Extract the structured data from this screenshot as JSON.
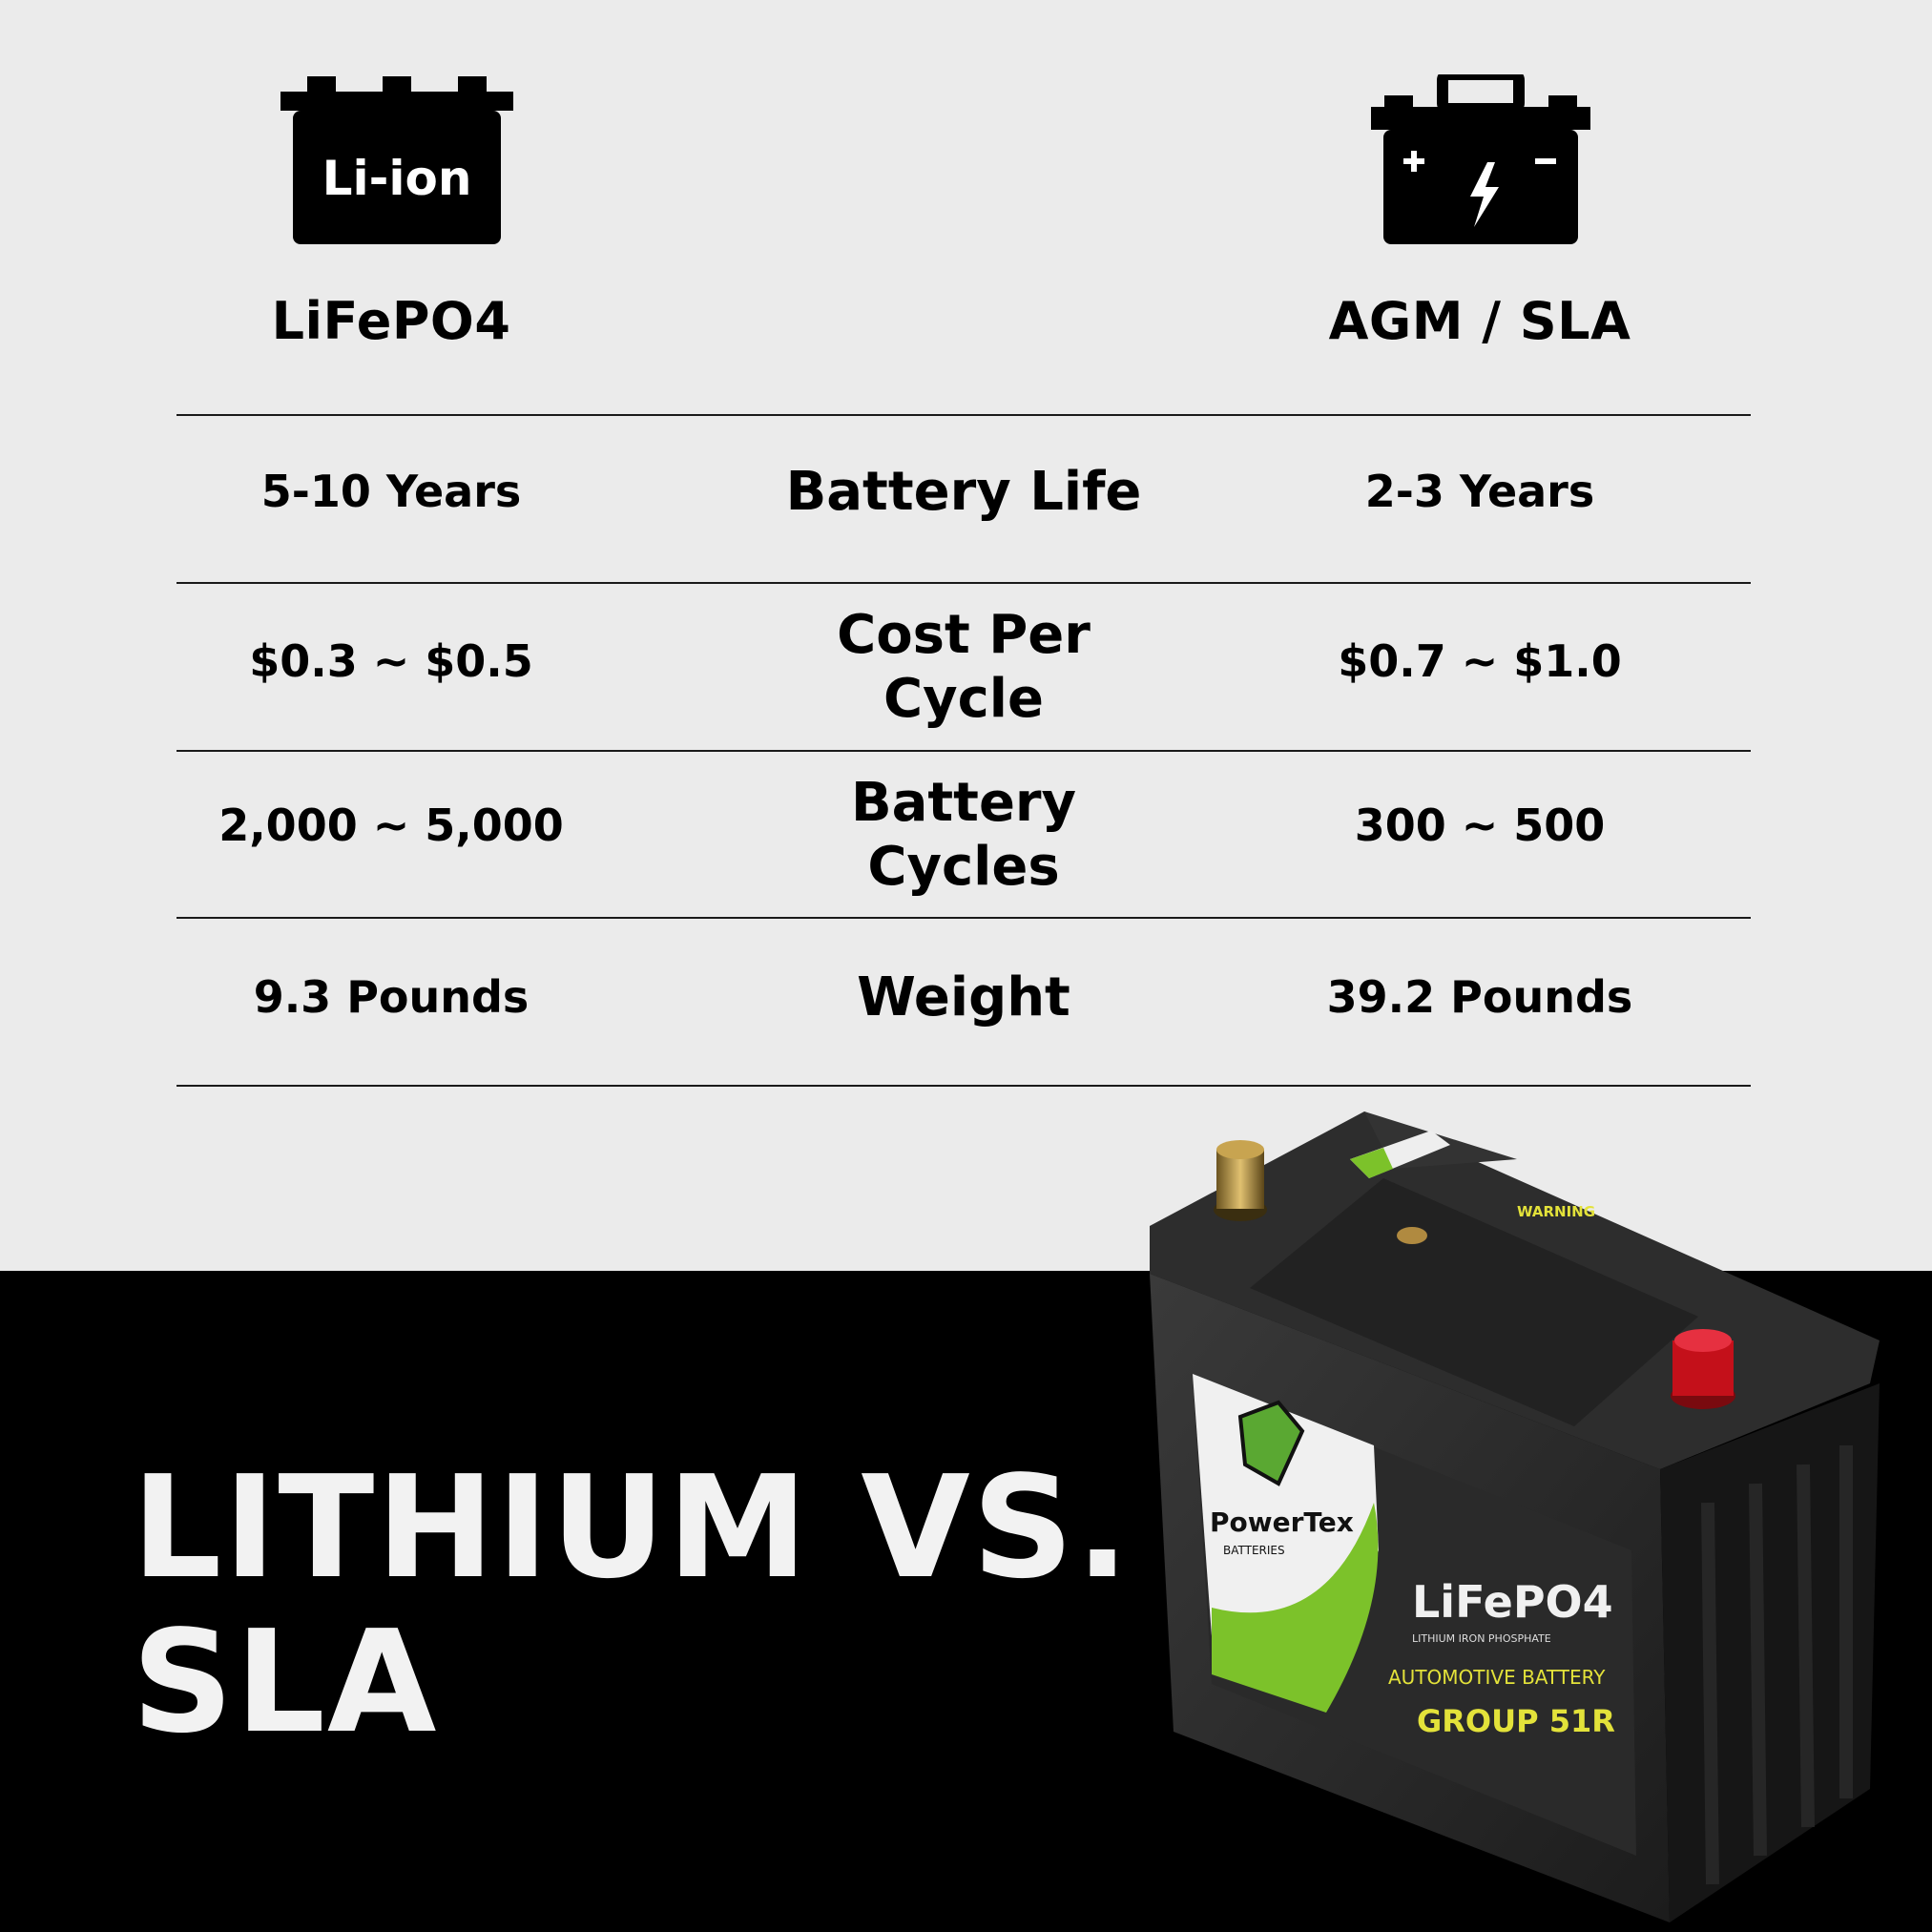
{
  "columns": {
    "left": {
      "icon": "li-ion-battery-icon",
      "icon_text": "Li-ion",
      "title": "LiFePO4"
    },
    "right": {
      "icon": "lead-acid-battery-icon",
      "title": "AGM / SLA"
    }
  },
  "rows": [
    {
      "label": "Battery Life",
      "left": "5-10 Years",
      "right": "2-3 Years"
    },
    {
      "label": "Cost Per Cycle",
      "left": "$0.3 ~ $0.5",
      "right": "$0.7 ~ $1.0"
    },
    {
      "label": "Battery Cycles",
      "left": "2,000 ~ 5,000",
      "right": "300 ~ 500"
    },
    {
      "label": "Weight",
      "left": "9.3 Pounds",
      "right": "39.2 Pounds"
    }
  ],
  "headline": {
    "line1": "LITHIUM VS.",
    "line2": "SLA"
  },
  "product": {
    "brand": "PowerTex",
    "brand_sub": "BATTERIES",
    "chemistry": "LiFePO4",
    "chemistry_sub": "LITHIUM IRON PHOSPHATE",
    "type": "AUTOMOTIVE BATTERY",
    "group": "GROUP 51R",
    "warning": "WARNING"
  },
  "colors": {
    "background": "#ebebeb",
    "footer": "#000000",
    "accent_green": "#7cc22a",
    "label_yellow": "#e3e23a",
    "terminal_red": "#d0121b"
  }
}
